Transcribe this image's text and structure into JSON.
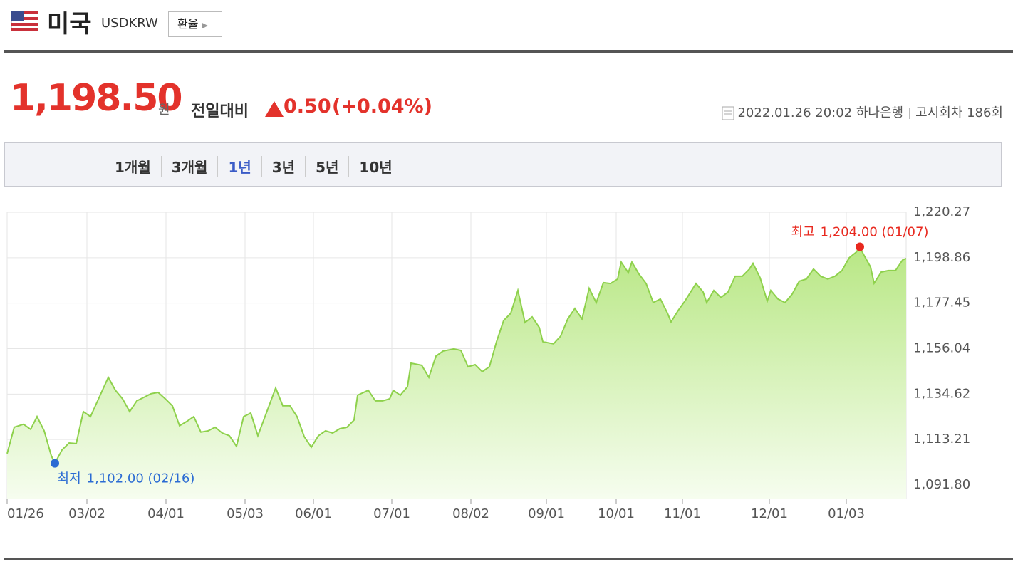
{
  "header": {
    "country": "미국",
    "code": "USDKRW",
    "button": "환율"
  },
  "quote": {
    "price": "1,198.50",
    "unit": "원",
    "change_label": "전일대비",
    "change": "0.50",
    "change_pct": "(+0.04%)",
    "datetime": "2022.01.26 20:02",
    "bank": "하나은행",
    "round": "고시회차 186회"
  },
  "tabs": {
    "items": [
      "1개월",
      "3개월",
      "1년",
      "3년",
      "5년",
      "10년"
    ],
    "selected": 2
  },
  "chart_data": {
    "type": "area",
    "xlim": [
      0,
      252.4
    ],
    "ylim": [
      1085.43,
      1220.27
    ],
    "xticks": [
      {
        "value": 0,
        "label": "01/26"
      },
      {
        "value": 22.4,
        "label": "03/02"
      },
      {
        "value": 44.6,
        "label": "04/01"
      },
      {
        "value": 66.8,
        "label": "05/03"
      },
      {
        "value": 86,
        "label": "06/01"
      },
      {
        "value": 108,
        "label": "07/01"
      },
      {
        "value": 130.2,
        "label": "08/02"
      },
      {
        "value": 151.4,
        "label": "09/01"
      },
      {
        "value": 171,
        "label": "10/01"
      },
      {
        "value": 189.6,
        "label": "11/01"
      },
      {
        "value": 214,
        "label": "12/01"
      },
      {
        "value": 235.6,
        "label": "01/03"
      }
    ],
    "yticks": [
      {
        "value": 1091.8,
        "label": "1,091.80"
      },
      {
        "value": 1113.21,
        "label": "1,113.21"
      },
      {
        "value": 1134.62,
        "label": "1,134.62"
      },
      {
        "value": 1156.04,
        "label": "1,156.04"
      },
      {
        "value": 1177.45,
        "label": "1,177.45"
      },
      {
        "value": 1198.86,
        "label": "1,198.86"
      },
      {
        "value": 1220.27,
        "label": "1,220.27"
      }
    ],
    "grid": true,
    "series": [
      {
        "color": "#8ed14c",
        "x": [
          0,
          2,
          4.6,
          6.6,
          8.4,
          10.4,
          12.4,
          13.4,
          15.4,
          17.4,
          19.4,
          21.4,
          23.4,
          25.4,
          28.4,
          30.4,
          32.4,
          34.4,
          36.4,
          38.4,
          40.4,
          42.4,
          44.4,
          46.4,
          48.4,
          50.4,
          52.4,
          54.4,
          56.4,
          58.4,
          60.4,
          62.4,
          64.4,
          66.4,
          68.4,
          70.4,
          72.4,
          75.4,
          77.4,
          79.4,
          81.4,
          83.4,
          85.4,
          87.4,
          89.4,
          91.4,
          93.4,
          95.4,
          97.4,
          98.4,
          101.4,
          103.4,
          105.4,
          107.4,
          108.4,
          110.4,
          112.4,
          113.4,
          116.4,
          118.4,
          120.4,
          122.4,
          125.4,
          127.4,
          129.4,
          131.4,
          133.4,
          135.4,
          137.4,
          139.4,
          141.4,
          143.4,
          145.4,
          147.4,
          149.4,
          150.4,
          153.4,
          155.4,
          157.4,
          159.4,
          161.4,
          163.4,
          165.4,
          167.4,
          169.4,
          171.4,
          172.4,
          174.4,
          175.4,
          177.4,
          179.4,
          181.4,
          183.4,
          185.4,
          186.4,
          188.4,
          190.4,
          193.4,
          195.4,
          196.4,
          198.4,
          200.4,
          202.4,
          204.4,
          206.4,
          208.4,
          209.4,
          211.4,
          213.4,
          214.4,
          216.4,
          218.4,
          220.4,
          222.4,
          224.4,
          226.4,
          228.4,
          230.4,
          232.4,
          234.4,
          236.4,
          238.4,
          239.4,
          240.4,
          242.4,
          243.4,
          245.4,
          247.4,
          249.4,
          251.4,
          252.4
        ],
        "values": [
          1106.6,
          1119.0,
          1120.4,
          1118.0,
          1124.0,
          1117.3,
          1105.6,
          1102.0,
          1108.3,
          1111.6,
          1111.3,
          1126.4,
          1124.0,
          1131.4,
          1142.5,
          1136.4,
          1132.4,
          1126.4,
          1131.4,
          1133.1,
          1134.8,
          1135.4,
          1132.4,
          1129.1,
          1119.7,
          1121.7,
          1124.0,
          1116.7,
          1117.3,
          1119.0,
          1116.3,
          1115.0,
          1110.0,
          1124.0,
          1125.7,
          1115.0,
          1124.0,
          1137.5,
          1129.1,
          1129.1,
          1124.0,
          1114.6,
          1109.6,
          1115.0,
          1117.3,
          1116.3,
          1118.3,
          1119.0,
          1122.4,
          1134.1,
          1136.4,
          1131.4,
          1131.4,
          1132.4,
          1136.4,
          1134.1,
          1138.1,
          1149.2,
          1148.2,
          1142.5,
          1152.5,
          1154.9,
          1155.9,
          1155.2,
          1147.5,
          1148.5,
          1145.2,
          1147.5,
          1159.3,
          1169.3,
          1172.7,
          1183.4,
          1168.3,
          1171.0,
          1166.0,
          1159.3,
          1158.3,
          1161.9,
          1170.0,
          1175.0,
          1170.0,
          1184.4,
          1177.7,
          1187.1,
          1186.7,
          1188.8,
          1196.8,
          1191.8,
          1196.8,
          1191.1,
          1186.7,
          1177.7,
          1179.4,
          1172.7,
          1168.6,
          1174.0,
          1178.7,
          1186.7,
          1182.7,
          1177.7,
          1183.4,
          1180.1,
          1182.7,
          1190.1,
          1190.1,
          1193.5,
          1196.2,
          1189.4,
          1178.4,
          1183.4,
          1179.4,
          1177.7,
          1181.7,
          1187.8,
          1188.8,
          1193.5,
          1190.1,
          1188.8,
          1190.1,
          1192.8,
          1198.8,
          1201.5,
          1204.0,
          1200.5,
          1194.5,
          1186.8,
          1192.1,
          1192.8,
          1192.8,
          1197.8,
          1198.5
        ]
      }
    ],
    "annotations": [
      {
        "label": "최고",
        "text": "1,204.00 (01/07)",
        "x": 239.4,
        "y": 1204.0,
        "color": "#e8281e"
      },
      {
        "label": "최저",
        "text": "1,102.00 (02/16)",
        "x": 13.4,
        "y": 1102.0,
        "color": "#2b6bd3"
      }
    ]
  }
}
